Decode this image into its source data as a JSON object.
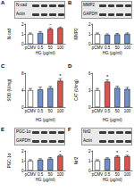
{
  "chart_data": [
    {
      "type": "bar",
      "title": "A",
      "blot_labels": [
        "N-cad",
        "Actin"
      ],
      "categories": [
        "pCMV",
        "0.5",
        "50",
        "100"
      ],
      "values": [
        1.0,
        1.1,
        1.5,
        1.6
      ],
      "errors": [
        0.1,
        0.15,
        0.12,
        0.1
      ],
      "colors": [
        "#ffffff",
        "#6f8fc9",
        "#d9534f",
        "#d9534f"
      ],
      "significance": [
        null,
        null,
        "*",
        "*"
      ],
      "ylabel": "N-cad",
      "xlabel": "HG (μg/ml)",
      "ylim": [
        0,
        2
      ],
      "yticks": [
        0,
        1,
        2
      ]
    },
    {
      "type": "bar",
      "title": "B",
      "blot_labels": [
        "MMP2",
        "GAPDH"
      ],
      "categories": [
        "pCMV",
        "0.5",
        "50",
        "100"
      ],
      "values": [
        1.0,
        0.9,
        0.95,
        1.0
      ],
      "errors": [
        0.1,
        0.1,
        0.1,
        0.1
      ],
      "colors": [
        "#ffffff",
        "#6f8fc9",
        "#6f8fc9",
        "#6f8fc9"
      ],
      "significance": [
        null,
        null,
        null,
        null
      ],
      "ylabel": "MMP2",
      "xlabel": "HG (μg/ml)",
      "ylim": [
        0,
        2
      ],
      "yticks": [
        0,
        1,
        2
      ]
    },
    {
      "type": "bar",
      "title": "C",
      "categories": [
        "pCMV",
        "0.5",
        "50",
        "100"
      ],
      "values": [
        4.0,
        4.2,
        4.5,
        6.2
      ],
      "errors": [
        0.4,
        0.5,
        0.4,
        0.5
      ],
      "colors": [
        "#ffffff",
        "#6f8fc9",
        "#6f8fc9",
        "#d9534f"
      ],
      "significance": [
        null,
        null,
        null,
        "*"
      ],
      "ylabel": "SOD (U/mg)",
      "xlabel": "HG (μg/ml)",
      "ylim": [
        0,
        8
      ],
      "yticks": [
        0,
        4,
        8
      ]
    },
    {
      "type": "bar",
      "title": "D",
      "categories": [
        "pCMV",
        "0.5",
        "50",
        "100"
      ],
      "values": [
        3.0,
        4.5,
        3.4,
        3.2
      ],
      "errors": [
        0.3,
        0.3,
        0.3,
        0.3
      ],
      "colors": [
        "#ffffff",
        "#d9534f",
        "#6f8fc9",
        "#6f8fc9"
      ],
      "significance": [
        null,
        "*",
        null,
        null
      ],
      "ylabel": "CAT (U/mg)",
      "xlabel": "HG (μg/ml)",
      "ylim": [
        0,
        6
      ],
      "yticks": [
        0,
        3,
        6
      ]
    },
    {
      "type": "bar",
      "title": "E",
      "blot_labels": [
        "PGC-1α",
        "GAPDH"
      ],
      "categories": [
        "pCMV",
        "0.5",
        "50",
        "100"
      ],
      "values": [
        1.0,
        1.1,
        1.2,
        1.5
      ],
      "errors": [
        0.1,
        0.1,
        0.12,
        0.12
      ],
      "colors": [
        "#ffffff",
        "#6f8fc9",
        "#6f8fc9",
        "#d9534f"
      ],
      "significance": [
        null,
        null,
        null,
        "*"
      ],
      "ylabel": "PGC-1α",
      "xlabel": "HG (μg/ml)",
      "ylim": [
        0,
        2
      ],
      "yticks": [
        0,
        1,
        2
      ]
    },
    {
      "type": "bar",
      "title": "F",
      "blot_labels": [
        "Nrf2",
        "Actin"
      ],
      "categories": [
        "pCMV",
        "0.5",
        "50",
        "100"
      ],
      "values": [
        1.0,
        1.2,
        1.4,
        1.45
      ],
      "errors": [
        0.1,
        0.1,
        0.1,
        0.1
      ],
      "colors": [
        "#ffffff",
        "#6f8fc9",
        "#d9534f",
        "#d9534f"
      ],
      "significance": [
        null,
        null,
        "*",
        "*"
      ],
      "ylabel": "Nrf2",
      "xlabel": "HG (μg/ml)",
      "ylim": [
        0,
        2
      ],
      "yticks": [
        0,
        1,
        2
      ]
    }
  ]
}
